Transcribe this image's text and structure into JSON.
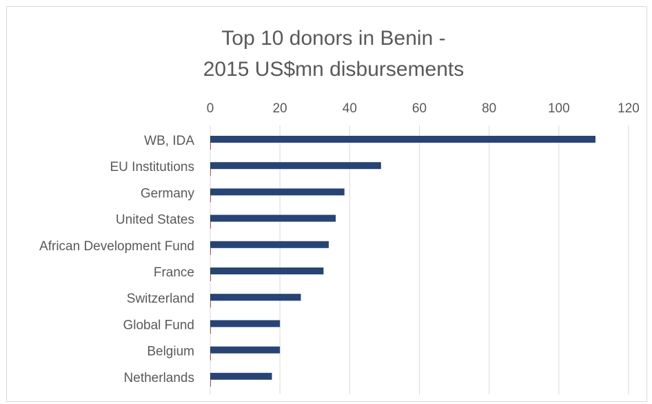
{
  "chart_data": {
    "type": "bar",
    "orientation": "horizontal",
    "title_lines": [
      "Top 10 donors in Benin -",
      "2015 US$mn disbursements"
    ],
    "categories": [
      "WB, IDA",
      "EU Institutions",
      "Germany",
      "United States",
      "African Development Fund",
      "France",
      "Switzerland",
      "Global Fund",
      "Belgium",
      "Netherlands"
    ],
    "series": [
      {
        "values": [
          110.5,
          49,
          38.5,
          36,
          34,
          32.5,
          26,
          20,
          20,
          17.7
        ],
        "color": "#264478"
      },
      {
        "values": [
          0.2,
          0.2,
          0.2,
          0.2,
          0.2,
          0.2,
          0.2,
          0.2,
          0.2,
          0.2
        ],
        "color": "#c0504d"
      }
    ],
    "xlim": [
      0,
      120
    ],
    "xticks": [
      0,
      20,
      40,
      60,
      80,
      100,
      120
    ],
    "x_axis_position": "top",
    "grid": true,
    "xlabel": "",
    "ylabel": ""
  }
}
